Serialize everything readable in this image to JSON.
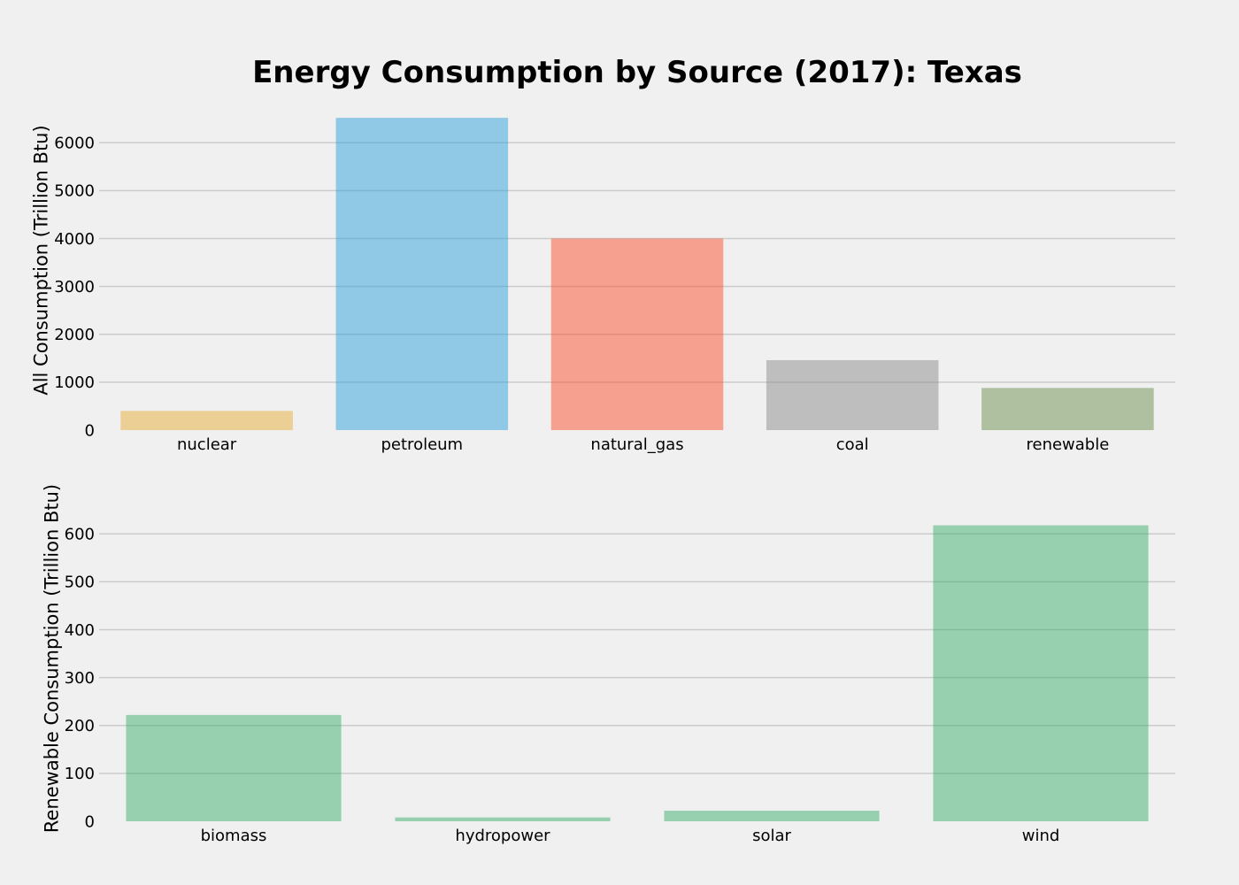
{
  "title": "Energy Consumption by Source (2017): Texas",
  "chart_data": [
    {
      "type": "bar",
      "ylabel": "All Consumption (Trillion Btu)",
      "xlabel": "",
      "categories": [
        "nuclear",
        "petroleum",
        "natural_gas",
        "coal",
        "renewable"
      ],
      "values": [
        400,
        6520,
        4000,
        1460,
        880
      ],
      "colors": [
        "#e5ae38",
        "#30a2da",
        "#fc4f30",
        "#8b8b8b",
        "#6d904f"
      ],
      "yticks": [
        0,
        1000,
        2000,
        3000,
        4000,
        5000,
        6000
      ],
      "ylim": [
        0,
        6800
      ],
      "grid": true
    },
    {
      "type": "bar",
      "ylabel": "Renewable Consumption (Trillion Btu)",
      "xlabel": "",
      "categories": [
        "biomass",
        "hydropower",
        "solar",
        "wind"
      ],
      "values": [
        222,
        8,
        22,
        618
      ],
      "colors": [
        "#3cb06b",
        "#3cb06b",
        "#3cb06b",
        "#3cb06b"
      ],
      "yticks": [
        0,
        100,
        200,
        300,
        400,
        500,
        600
      ],
      "ylim": [
        0,
        680
      ],
      "grid": true
    }
  ]
}
